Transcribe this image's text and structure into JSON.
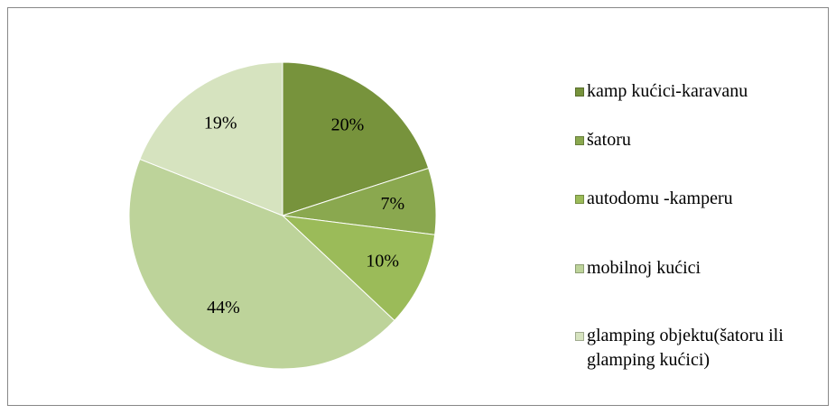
{
  "chart_data": {
    "type": "pie",
    "categories": [
      "kamp kućici-karavanu",
      "šatoru",
      "autodomu -kamperu",
      "mobilnoj kućici",
      "glamping objektu(šatoru ili glamping kućici)"
    ],
    "values": [
      20,
      7,
      10,
      44,
      19
    ],
    "value_labels": [
      "20%",
      "7%",
      "10%",
      "44%",
      "19%"
    ],
    "colors": [
      "#77933c",
      "#8aa84f",
      "#9bbb59",
      "#bdd39a",
      "#d6e3bf"
    ],
    "legend": "right"
  }
}
